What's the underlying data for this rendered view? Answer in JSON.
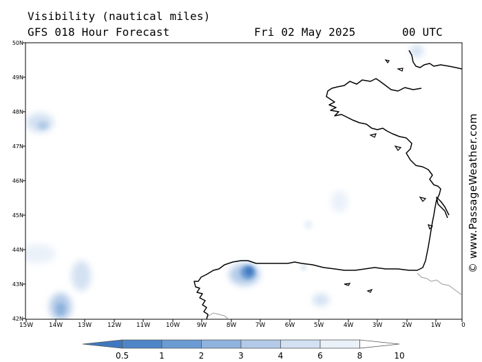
{
  "header": {
    "title": "Visibility (nautical miles)",
    "subtitle": "GFS 018 Hour Forecast",
    "date": "Fri 02 May 2025",
    "time": "00 UTC"
  },
  "credit": "© www.PassageWeather.com",
  "latitude_labels": [
    "50N",
    "49N",
    "48N",
    "47N",
    "46N",
    "45N",
    "44N",
    "43N",
    "42N"
  ],
  "longitude_labels": [
    "15W",
    "14W",
    "13W",
    "12W",
    "11W",
    "10W",
    "9W",
    "8W",
    "7W",
    "6W",
    "5W",
    "4W",
    "3W",
    "2W",
    "1W",
    "0"
  ],
  "colorbar": {
    "labels": [
      "0.5",
      "1",
      "2",
      "3",
      "4",
      "6",
      "8",
      "10"
    ],
    "colors": [
      "#3f78c1",
      "#4e85c8",
      "#6b9bd3",
      "#8fb3de",
      "#b3cbe8",
      "#d3e1f2",
      "#eaf1f9",
      "#ffffff"
    ]
  },
  "map": {
    "lon_range": [
      -15,
      0
    ],
    "lat_range": [
      42,
      50
    ],
    "land_outline_color": "#000000",
    "border_color": "#999999"
  }
}
